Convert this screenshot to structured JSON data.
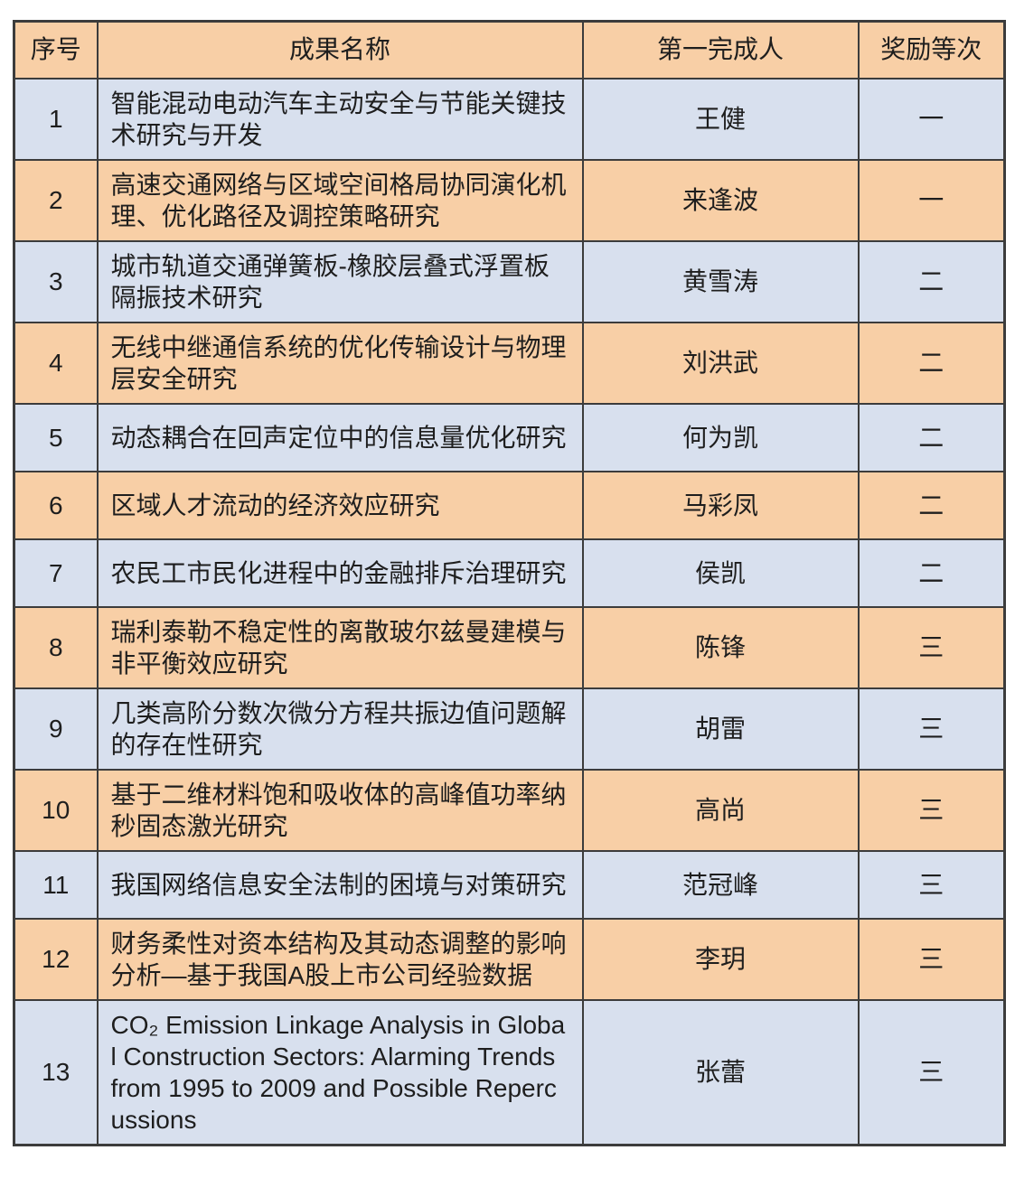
{
  "table": {
    "columns": [
      {
        "label": "序号"
      },
      {
        "label": "成果名称"
      },
      {
        "label": "第一完成人"
      },
      {
        "label": "奖励等次"
      }
    ],
    "rows": [
      {
        "index": "1",
        "title": "智能混动电动汽车主动安全与节能关键技术研究与开发",
        "first_author": "王健",
        "award": "一"
      },
      {
        "index": "2",
        "title": "高速交通网络与区域空间格局协同演化机理、优化路径及调控策略研究",
        "first_author": "来逢波",
        "award": "一"
      },
      {
        "index": "3",
        "title": "城市轨道交通弹簧板-橡胶层叠式浮置板隔振技术研究",
        "first_author": "黄雪涛",
        "award": "二"
      },
      {
        "index": "4",
        "title": "无线中继通信系统的优化传输设计与物理层安全研究",
        "first_author": "刘洪武",
        "award": "二"
      },
      {
        "index": "5",
        "title": "动态耦合在回声定位中的信息量优化研究",
        "first_author": "何为凯",
        "award": "二"
      },
      {
        "index": "6",
        "title": "区域人才流动的经济效应研究",
        "first_author": "马彩凤",
        "award": "二"
      },
      {
        "index": "7",
        "title": "农民工市民化进程中的金融排斥治理研究",
        "first_author": "侯凯",
        "award": "二"
      },
      {
        "index": "8",
        "title": "瑞利泰勒不稳定性的离散玻尔兹曼建模与非平衡效应研究",
        "first_author": "陈锋",
        "award": "三"
      },
      {
        "index": "9",
        "title": "几类高阶分数次微分方程共振边值问题解的存在性研究",
        "first_author": "胡雷",
        "award": "三"
      },
      {
        "index": "10",
        "title": "基于二维材料饱和吸收体的高峰值功率纳秒固态激光研究",
        "first_author": "高尚",
        "award": "三"
      },
      {
        "index": "11",
        "title": "我国网络信息安全法制的困境与对策研究",
        "first_author": "范冠峰",
        "award": "三"
      },
      {
        "index": "12",
        "title": "财务柔性对资本结构及其动态调整的影响分析—基于我国A股上市公司经验数据",
        "first_author": "李玥",
        "award": "三"
      },
      {
        "index": "13",
        "title": "CO₂ Emission Linkage Analysis in Global Construction Sectors: Alarming Trends from 1995 to 2009 and Possible Repercussions",
        "first_author": "张蕾",
        "award": "三"
      }
    ],
    "colors": {
      "header_bg": "#f8cfa6",
      "even_row_bg": "#f8cfa6",
      "odd_row_bg": "#d8e0ee",
      "border": "#3c3c3c",
      "text": "#1e1e1e"
    }
  }
}
